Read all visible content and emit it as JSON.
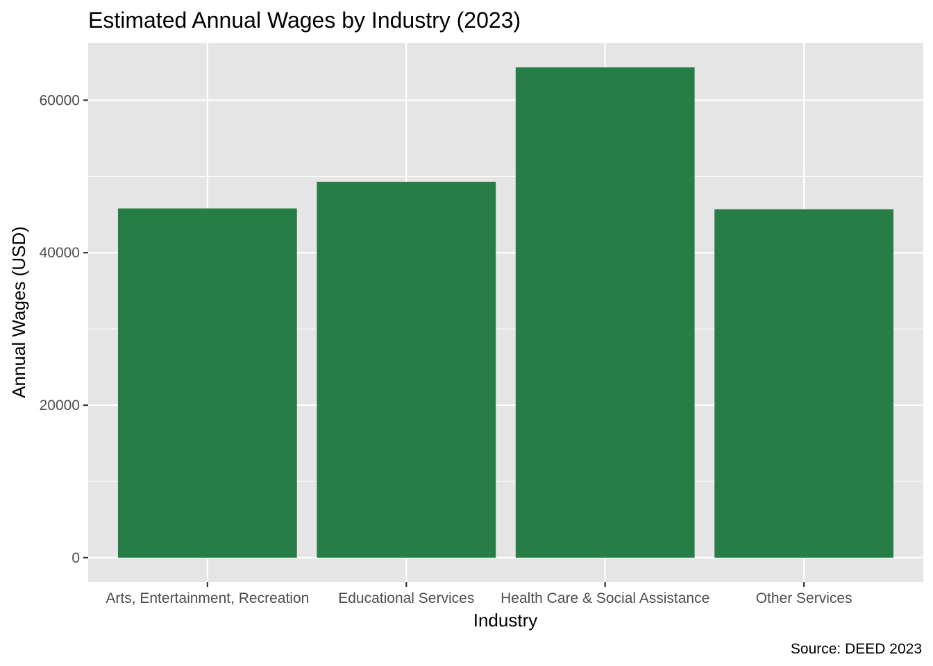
{
  "chart_data": {
    "type": "bar",
    "title": "Estimated Annual Wages by Industry (2023)",
    "xlabel": "Industry",
    "ylabel": "Annual Wages (USD)",
    "caption": "Source: DEED 2023",
    "categories": [
      "Arts, Entertainment, Recreation",
      "Educational Services",
      "Health Care & Social Assistance",
      "Other Services"
    ],
    "values": [
      45800,
      49300,
      64300,
      45700
    ],
    "ylim": [
      -3200,
      67500
    ],
    "yticks": [
      0,
      20000,
      40000,
      60000
    ],
    "ytick_labels": [
      "0",
      "20000",
      "40000",
      "60000"
    ],
    "grid": true,
    "bar_color": "#277d46",
    "panel_background": "#e5e5e5",
    "grid_color": "#ffffff"
  }
}
